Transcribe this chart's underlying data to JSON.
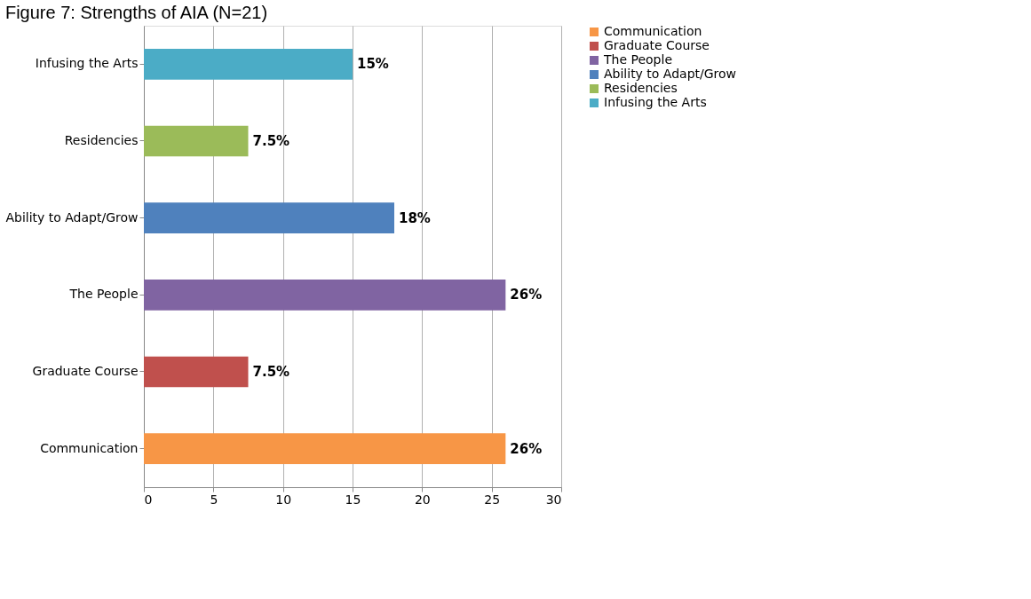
{
  "chart_data": {
    "type": "bar",
    "orientation": "horizontal",
    "title": "Figure 7: Strengths of AIA (N=21)",
    "categories": [
      "Infusing the Arts",
      "Residencies",
      "Ability to Adapt/Grow",
      "The People",
      "Graduate Course",
      "Communication"
    ],
    "series": [
      {
        "name": "Communication",
        "color": "#f79646",
        "values": [
          null,
          null,
          null,
          null,
          null,
          26
        ],
        "value_labels": [
          null,
          null,
          null,
          null,
          null,
          "26%"
        ]
      },
      {
        "name": "Graduate Course",
        "color": "#c0504d",
        "values": [
          null,
          null,
          null,
          null,
          7.5,
          null
        ],
        "value_labels": [
          null,
          null,
          null,
          null,
          "7.5%",
          null
        ]
      },
      {
        "name": "The People",
        "color": "#8064a2",
        "values": [
          null,
          null,
          null,
          26,
          null,
          null
        ],
        "value_labels": [
          null,
          null,
          null,
          "26%",
          null,
          null
        ]
      },
      {
        "name": "Ability to Adapt/Grow",
        "color": "#4f81bd",
        "values": [
          null,
          null,
          18,
          null,
          null,
          null
        ],
        "value_labels": [
          null,
          null,
          "18%",
          null,
          null,
          null
        ]
      },
      {
        "name": "Residencies",
        "color": "#9bbb59",
        "values": [
          null,
          7.5,
          null,
          null,
          null,
          null
        ],
        "value_labels": [
          null,
          "7.5%",
          null,
          null,
          null,
          null
        ]
      },
      {
        "name": "Infusing the Arts",
        "color": "#4bacc6",
        "values": [
          15,
          null,
          null,
          null,
          null,
          null
        ],
        "value_labels": [
          "15%",
          null,
          null,
          null,
          null,
          null
        ]
      }
    ],
    "xlim": [
      0,
      30
    ],
    "xticks": [
      0,
      5,
      10,
      15,
      20,
      25,
      30
    ],
    "grid": "x",
    "legend": "right"
  }
}
